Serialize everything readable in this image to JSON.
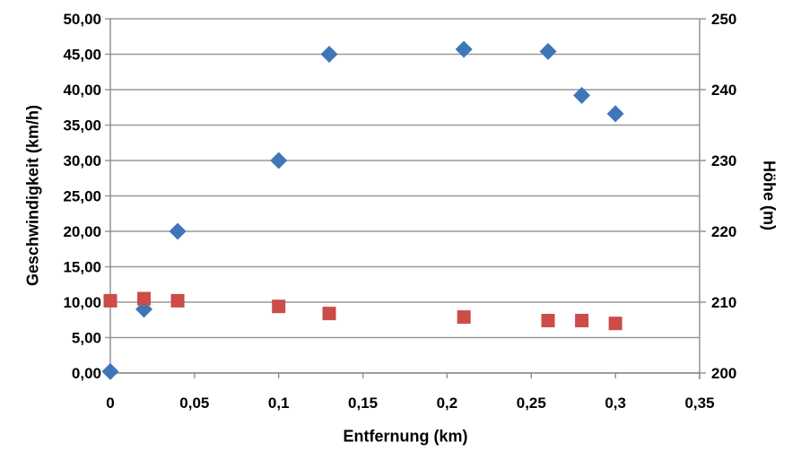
{
  "chart_data": {
    "type": "scatter",
    "title": "",
    "xlabel": "Entfernung (km)",
    "ylabel_left": "Geschwindigkeit (km/h)",
    "ylabel_right": "Höhe (m)",
    "xlim": [
      0,
      0.35
    ],
    "ylim_left": [
      0,
      50
    ],
    "ylim_right": [
      200,
      250
    ],
    "grid": "horizontal",
    "legend": "none",
    "x_tick_values": [
      0,
      0.05,
      0.1,
      0.15,
      0.2,
      0.25,
      0.3,
      0.35
    ],
    "x_tick_labels": [
      "0",
      "0,05",
      "0,1",
      "0,15",
      "0,2",
      "0,25",
      "0,3",
      "0,35"
    ],
    "y_left_tick_values": [
      0,
      5,
      10,
      15,
      20,
      25,
      30,
      35,
      40,
      45,
      50
    ],
    "y_left_tick_labels": [
      "0,00",
      "5,00",
      "10,00",
      "15,00",
      "20,00",
      "25,00",
      "30,00",
      "35,00",
      "40,00",
      "45,00",
      "50,00"
    ],
    "y_right_tick_values": [
      200,
      210,
      220,
      230,
      240,
      250
    ],
    "y_right_tick_labels": [
      "200",
      "210",
      "220",
      "230",
      "240",
      "250"
    ],
    "colors": {
      "grid": "#999999",
      "axis": "#8c8c8c",
      "text": "#000000",
      "series_speed": "#3f76b8",
      "series_height": "#cb4c48"
    },
    "series": [
      {
        "key": "geschwindigkeit",
        "name": "Geschwindigkeit (km/h)",
        "axis": "left",
        "marker": "diamond",
        "color": "#3f76b8",
        "x": [
          0,
          0.02,
          0.04,
          0.1,
          0.13,
          0.21,
          0.26,
          0.28,
          0.3
        ],
        "y": [
          0.2,
          9.0,
          20.0,
          30.0,
          45.0,
          45.7,
          45.4,
          39.2,
          36.6
        ]
      },
      {
        "key": "hoehe",
        "name": "Höhe (m)",
        "axis": "right",
        "marker": "square",
        "color": "#cb4c48",
        "x": [
          0,
          0.02,
          0.04,
          0.1,
          0.13,
          0.21,
          0.26,
          0.28,
          0.3
        ],
        "y": [
          210.2,
          210.5,
          210.2,
          209.4,
          208.4,
          207.9,
          207.4,
          207.4,
          207.0
        ]
      }
    ]
  }
}
